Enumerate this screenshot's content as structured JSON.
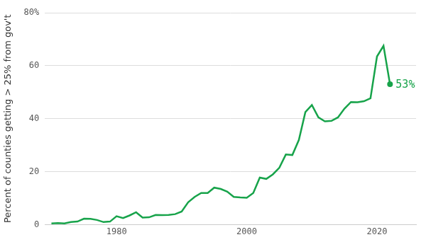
{
  "chart_data": {
    "type": "line",
    "y_label": "Percent of counties getting > 25% from gov't",
    "color": "#17a34a",
    "x": [
      1970,
      1971,
      1972,
      1973,
      1974,
      1975,
      1976,
      1977,
      1978,
      1979,
      1980,
      1981,
      1982,
      1983,
      1984,
      1985,
      1986,
      1987,
      1988,
      1989,
      1990,
      1991,
      1992,
      1993,
      1994,
      1995,
      1996,
      1997,
      1998,
      1999,
      2000,
      2001,
      2002,
      2003,
      2004,
      2005,
      2006,
      2007,
      2008,
      2009,
      2010,
      2011,
      2012,
      2013,
      2014,
      2015,
      2016,
      2017,
      2018,
      2019,
      2020,
      2021,
      2022
    ],
    "values": [
      0.5,
      0.6,
      0.5,
      1,
      1.2,
      2.3,
      2.2,
      1.8,
      1,
      1.2,
      3.2,
      2.5,
      3.5,
      4.7,
      2.7,
      2.8,
      3.7,
      3.6,
      3.7,
      4,
      5,
      8.5,
      10.5,
      12,
      12,
      14,
      13.5,
      12.5,
      10.5,
      10.3,
      10.2,
      12,
      17.8,
      17.3,
      19,
      21.5,
      26.5,
      26.3,
      32,
      42.5,
      45.2,
      40.5,
      39,
      39.2,
      40.5,
      43.8,
      46.3,
      46.2,
      46.6,
      47.7,
      63.5,
      67.5,
      53
    ],
    "xlim": [
      1969,
      2026
    ],
    "xticks": [
      1980,
      2000,
      2020
    ],
    "ylim": [
      0,
      80
    ],
    "yticks": [
      0,
      20,
      40,
      60,
      {
        "value": 80,
        "label": "80%"
      }
    ],
    "grid": true,
    "annotations": [
      {
        "text": "53%",
        "x": 2022,
        "y": 53
      }
    ]
  }
}
